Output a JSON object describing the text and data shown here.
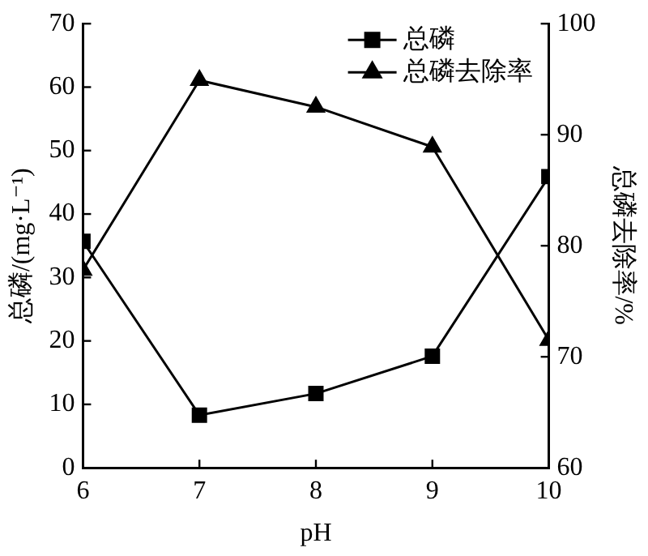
{
  "chart_data": {
    "type": "line",
    "xlabel": "pH",
    "ylabel": "总磷/(mg·L⁻¹)",
    "y2label": "总磷去除率/%",
    "x": [
      6,
      7,
      8,
      9,
      10
    ],
    "series": [
      {
        "name": "总磷",
        "color": "#000000",
        "marker": "square",
        "values": [
          35.7,
          8.3,
          11.7,
          17.6,
          45.9
        ]
      },
      {
        "name": "总磷去除率",
        "color": "#000000",
        "marker": "triangle",
        "axis": "y2",
        "values": [
          77.8,
          94.9,
          92.5,
          88.9,
          71.5
        ]
      }
    ],
    "xlim": [
      6,
      10
    ],
    "xticks": [
      6,
      7,
      8,
      9,
      10
    ],
    "ylim": [
      0,
      70
    ],
    "yticks": [
      0,
      10,
      20,
      30,
      40,
      50,
      60,
      70
    ],
    "y2lim": [
      60,
      100
    ],
    "y2ticks": [
      60,
      70,
      80,
      90,
      100
    ],
    "grid": false,
    "legend": "top right",
    "line_style": "solid"
  }
}
